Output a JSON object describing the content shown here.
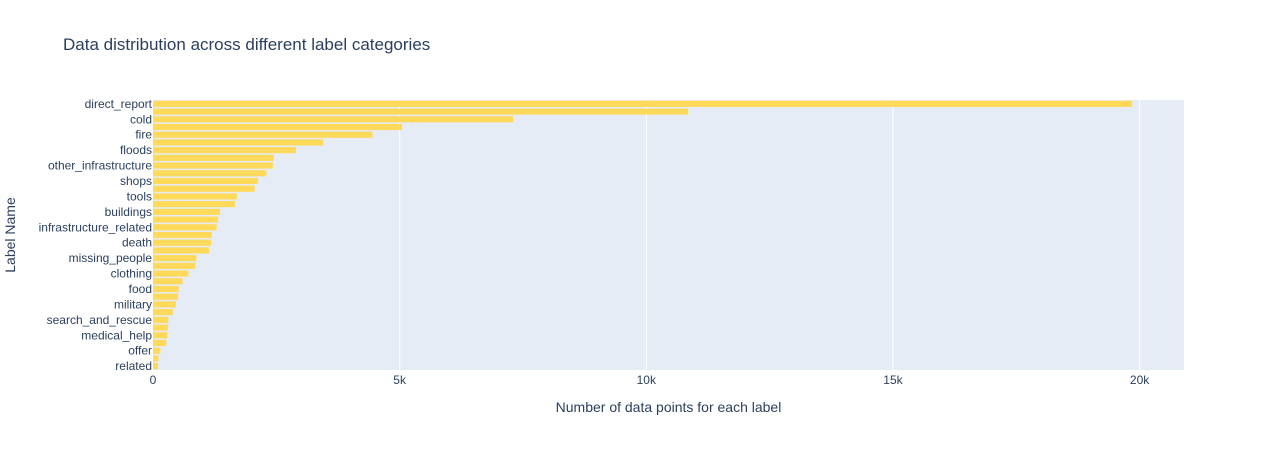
{
  "chart_data": {
    "type": "bar",
    "orientation": "horizontal",
    "title": "Data distribution across different label categories",
    "xlabel": "Number of data points for each label",
    "ylabel": "Label Name",
    "xlim": [
      0,
      20900
    ],
    "x_ticks": [
      {
        "value": 0,
        "label": "0"
      },
      {
        "value": 5000,
        "label": "5k"
      },
      {
        "value": 10000,
        "label": "10k"
      },
      {
        "value": 15000,
        "label": "15k"
      },
      {
        "value": 20000,
        "label": "20k"
      }
    ],
    "categories": [
      "direct_report",
      "",
      "cold",
      "",
      "fire",
      "",
      "floods",
      "",
      "other_infrastructure",
      "",
      "shops",
      "",
      "tools",
      "",
      "buildings",
      "",
      "infrastructure_related",
      "",
      "death",
      "",
      "missing_people",
      "",
      "clothing",
      "",
      "food",
      "",
      "military",
      "",
      "search_and_rescue",
      "",
      "medical_help",
      "",
      "offer",
      "",
      "related"
    ],
    "values": [
      19850,
      10850,
      7300,
      5050,
      4450,
      3450,
      2900,
      2450,
      2430,
      2300,
      2130,
      2060,
      1700,
      1660,
      1360,
      1320,
      1290,
      1190,
      1180,
      1140,
      880,
      860,
      720,
      600,
      520,
      510,
      460,
      400,
      310,
      300,
      290,
      270,
      150,
      110,
      100
    ],
    "bar_color": "#ffd95a",
    "plot_bgcolor": "#e5ecf6",
    "grid": true,
    "legend": false
  }
}
